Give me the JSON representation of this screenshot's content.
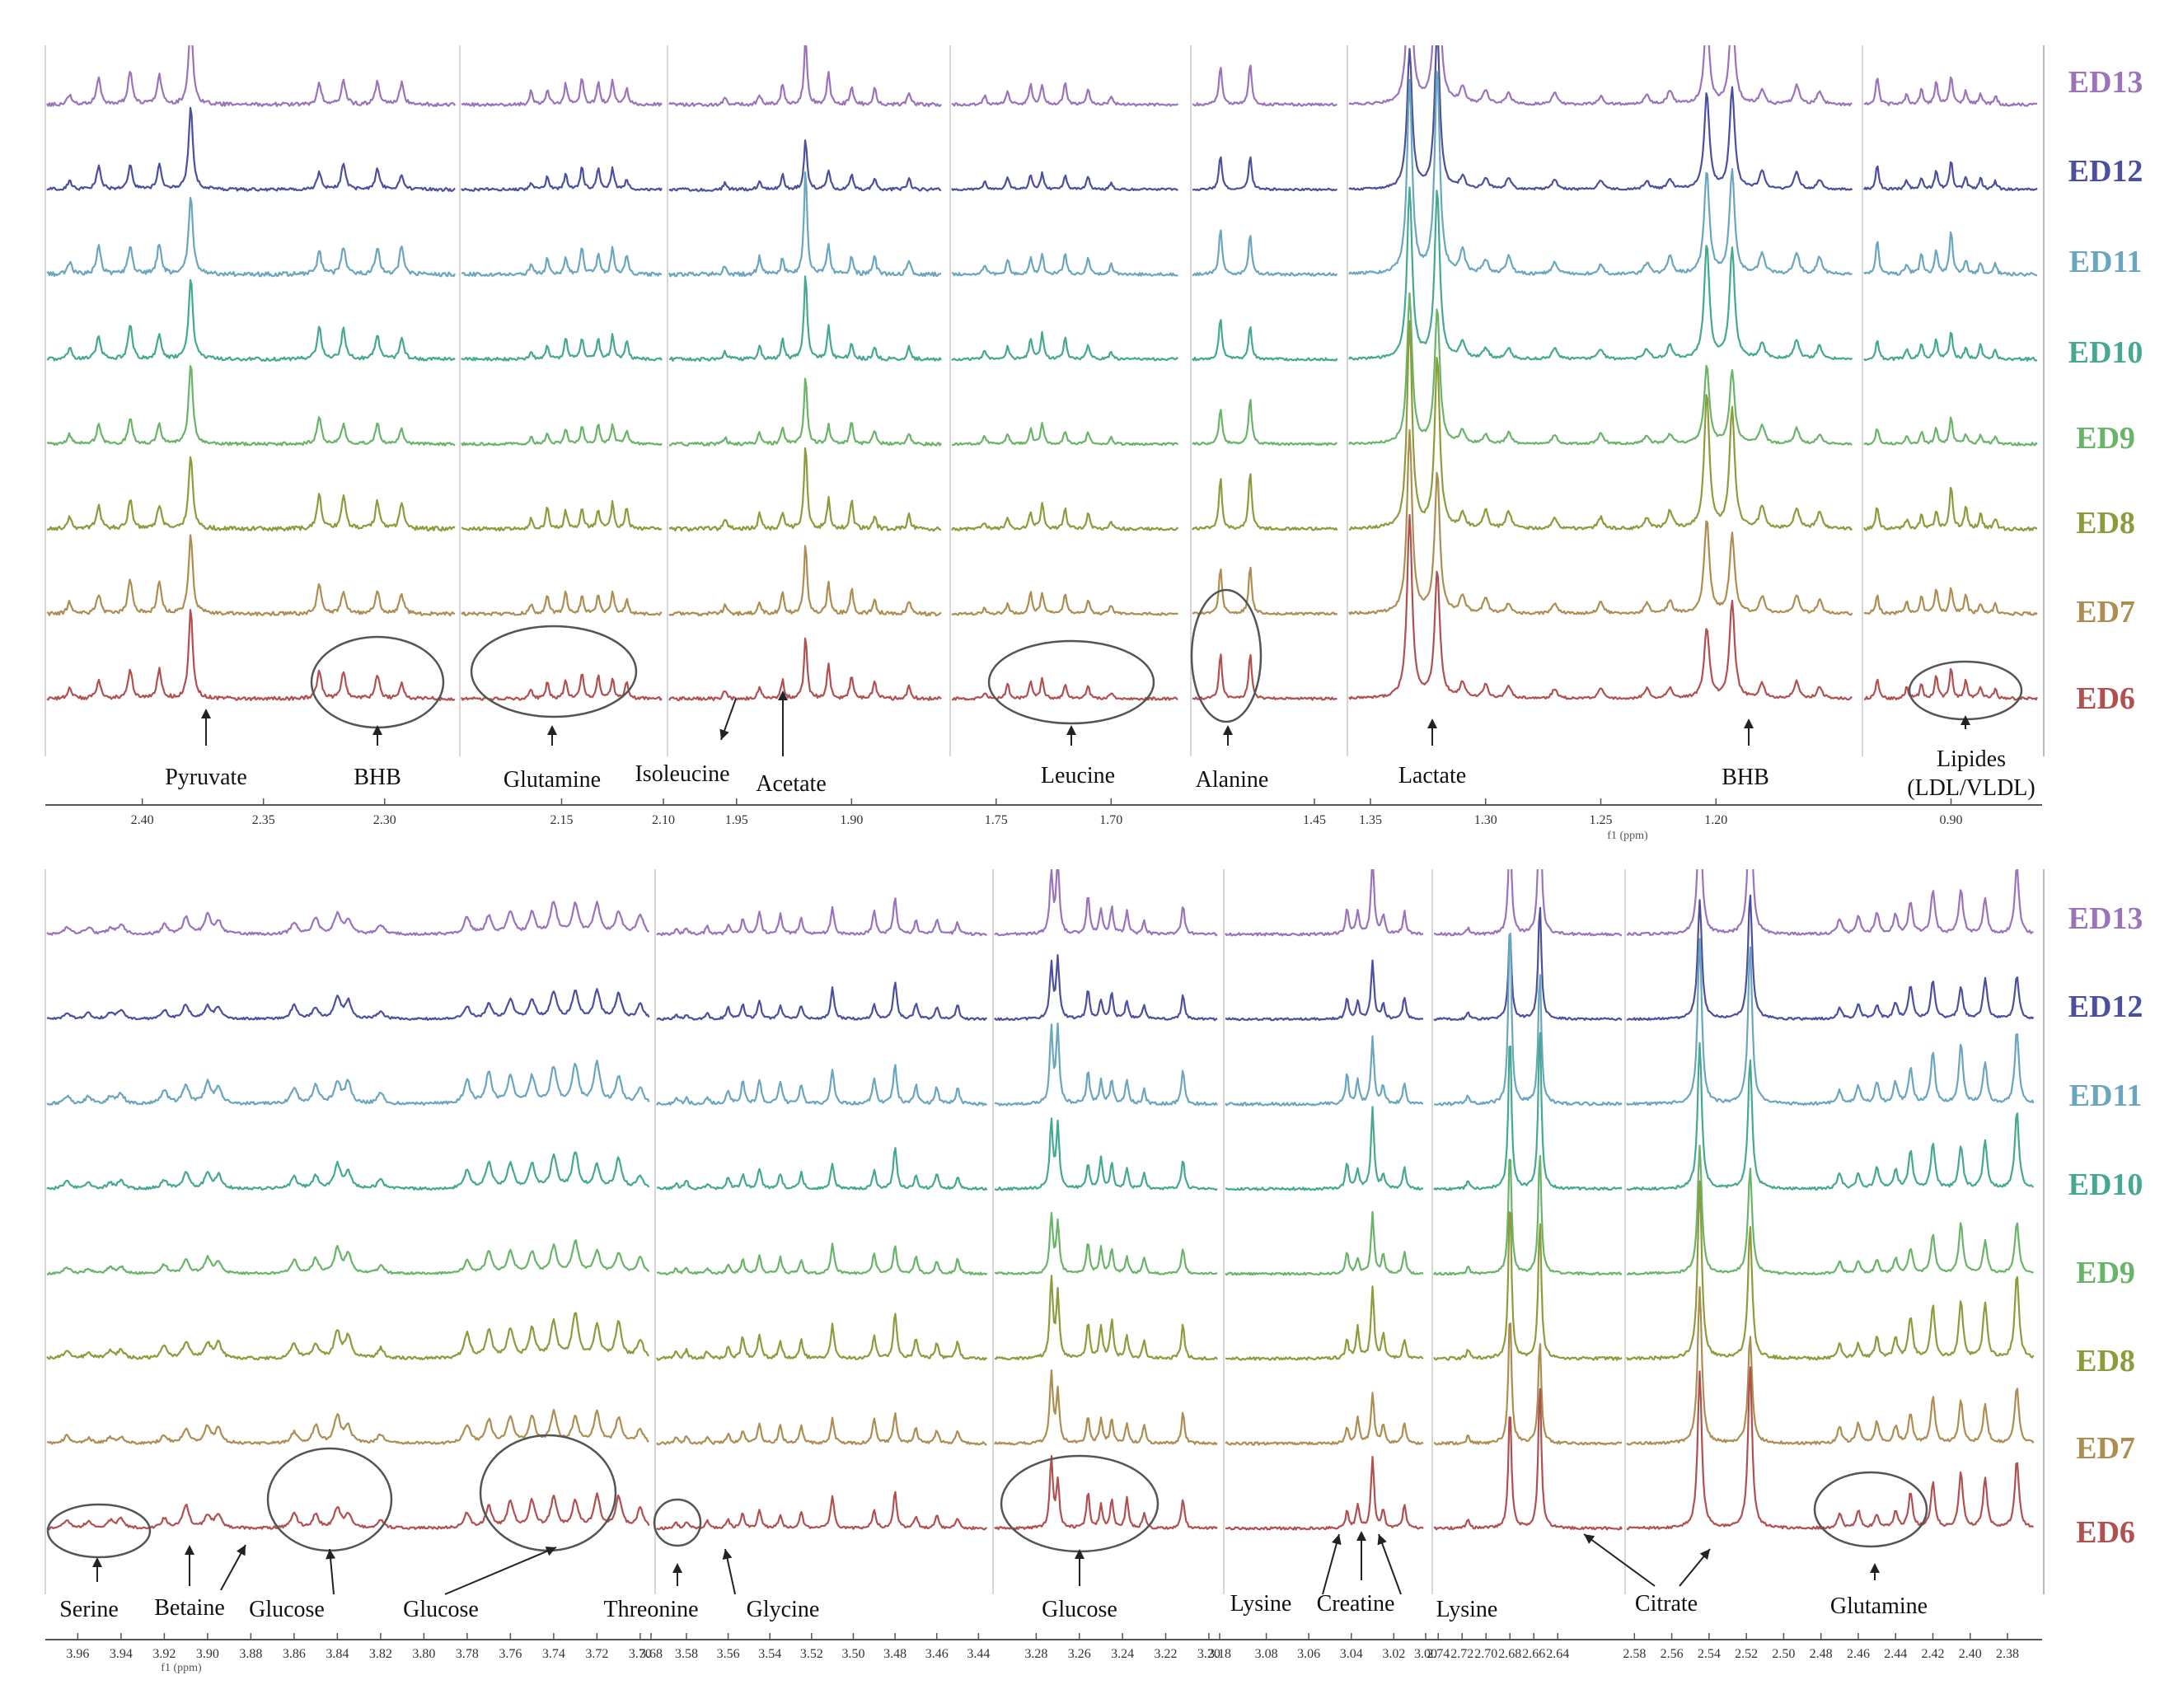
{
  "chart_data": [
    {
      "type": "line",
      "title": "",
      "xlabel": "f1 (ppm)",
      "ylabel": "",
      "grid": false,
      "series_labels": [
        "ED13",
        "ED12",
        "ED11",
        "ED10",
        "ED9",
        "ED8",
        "ED7",
        "ED6"
      ],
      "series_colors": [
        "#9b73bb",
        "#4b4f9e",
        "#6aa6bd",
        "#45a890",
        "#69b468",
        "#8c9c3c",
        "#ad8e52",
        "#b05050"
      ],
      "panels": [
        {
          "name": "p1",
          "ppm": [
            2.44,
            2.27
          ],
          "ticks": [
            2.4,
            2.35,
            2.3
          ],
          "peaks": [
            {
              "ppm": 2.43,
              "h": 0.18
            },
            {
              "ppm": 2.418,
              "h": 0.45
            },
            {
              "ppm": 2.405,
              "h": 0.55
            },
            {
              "ppm": 2.393,
              "h": 0.5
            },
            {
              "ppm": 2.38,
              "h": 1.6
            },
            {
              "ppm": 2.327,
              "h": 0.5
            },
            {
              "ppm": 2.317,
              "h": 0.48
            },
            {
              "ppm": 2.303,
              "h": 0.4
            },
            {
              "ppm": 2.293,
              "h": 0.4
            }
          ],
          "noise": 0.07
        },
        {
          "name": "p2",
          "ppm": [
            2.2,
            2.1
          ],
          "ticks": [
            2.15,
            2.1
          ],
          "peaks": [
            {
              "ppm": 2.165,
              "h": 0.2
            },
            {
              "ppm": 2.157,
              "h": 0.3
            },
            {
              "ppm": 2.148,
              "h": 0.35
            },
            {
              "ppm": 2.14,
              "h": 0.42
            },
            {
              "ppm": 2.132,
              "h": 0.38
            },
            {
              "ppm": 2.125,
              "h": 0.45
            },
            {
              "ppm": 2.118,
              "h": 0.3
            }
          ],
          "noise": 0.06
        },
        {
          "name": "p3",
          "ppm": [
            1.98,
            1.86
          ],
          "ticks": [
            1.95,
            1.9
          ],
          "peaks": [
            {
              "ppm": 1.955,
              "h": 0.15
            },
            {
              "ppm": 1.94,
              "h": 0.25
            },
            {
              "ppm": 1.93,
              "h": 0.35
            },
            {
              "ppm": 1.92,
              "h": 1.5
            },
            {
              "ppm": 1.91,
              "h": 0.55
            },
            {
              "ppm": 1.9,
              "h": 0.4
            },
            {
              "ppm": 1.89,
              "h": 0.3
            },
            {
              "ppm": 1.875,
              "h": 0.2
            }
          ],
          "noise": 0.07
        },
        {
          "name": "p4",
          "ppm": [
            1.77,
            1.67
          ],
          "ticks": [
            1.75,
            1.7
          ],
          "peaks": [
            {
              "ppm": 1.755,
              "h": 0.15
            },
            {
              "ppm": 1.745,
              "h": 0.25
            },
            {
              "ppm": 1.735,
              "h": 0.35
            },
            {
              "ppm": 1.73,
              "h": 0.42
            },
            {
              "ppm": 1.72,
              "h": 0.35
            },
            {
              "ppm": 1.71,
              "h": 0.28
            },
            {
              "ppm": 1.7,
              "h": 0.15
            }
          ],
          "noise": 0.05
        },
        {
          "name": "p5",
          "ppm": [
            1.5,
            1.44
          ],
          "ticks": [
            1.45
          ],
          "peaks": [
            {
              "ppm": 1.488,
              "h": 0.9
            },
            {
              "ppm": 1.476,
              "h": 0.85
            }
          ],
          "noise": 0.05
        },
        {
          "name": "p6",
          "ppm": [
            1.36,
            1.14
          ],
          "ticks": [
            1.35,
            1.3,
            1.25,
            1.2
          ],
          "peaks": [
            {
              "ppm": 1.333,
              "h": 3.0
            },
            {
              "ppm": 1.321,
              "h": 3.0
            },
            {
              "ppm": 1.31,
              "h": 0.3
            },
            {
              "ppm": 1.3,
              "h": 0.25
            },
            {
              "ppm": 1.29,
              "h": 0.25
            },
            {
              "ppm": 1.27,
              "h": 0.2
            },
            {
              "ppm": 1.25,
              "h": 0.2
            },
            {
              "ppm": 1.23,
              "h": 0.22
            },
            {
              "ppm": 1.22,
              "h": 0.25
            },
            {
              "ppm": 1.204,
              "h": 1.8
            },
            {
              "ppm": 1.193,
              "h": 1.8
            },
            {
              "ppm": 1.18,
              "h": 0.35
            },
            {
              "ppm": 1.165,
              "h": 0.3
            },
            {
              "ppm": 1.155,
              "h": 0.25
            }
          ],
          "noise": 0.05
        },
        {
          "name": "p7",
          "ppm": [
            0.96,
            0.84
          ],
          "ticks": [
            0.9
          ],
          "peaks": [
            {
              "ppm": 0.95,
              "h": 0.45
            },
            {
              "ppm": 0.93,
              "h": 0.2
            },
            {
              "ppm": 0.92,
              "h": 0.3
            },
            {
              "ppm": 0.91,
              "h": 0.4
            },
            {
              "ppm": 0.9,
              "h": 0.6
            },
            {
              "ppm": 0.89,
              "h": 0.3
            },
            {
              "ppm": 0.88,
              "h": 0.25
            },
            {
              "ppm": 0.87,
              "h": 0.2
            }
          ],
          "noise": 0.06
        }
      ],
      "tick_labels": [
        "2.40",
        "2.35",
        "2.30",
        "2.15",
        "2.10",
        "1.95",
        "1.90",
        "1.75",
        "1.70",
        "1.45",
        "1.35",
        "1.30",
        "1.25",
        "1.20",
        "0.90"
      ],
      "annotations": [
        "Pyruvate",
        "BHB",
        "Glutamine",
        "Isoleucine",
        "Acetate",
        "Leucine",
        "Alanine",
        "Lactate",
        "BHB",
        "Lipides",
        "(LDL/VLDL)"
      ],
      "unit_label": "f1 (ppm)"
    },
    {
      "type": "line",
      "title": "",
      "xlabel": "f1 (ppm)",
      "ylabel": "",
      "grid": false,
      "series_labels": [
        "ED13",
        "ED12",
        "ED11",
        "ED10",
        "ED9",
        "ED8",
        "ED7",
        "ED6"
      ],
      "series_colors": [
        "#9b73bb",
        "#4b4f9e",
        "#6aa6bd",
        "#45a890",
        "#69b468",
        "#8c9c3c",
        "#ad8e52",
        "#b05050"
      ],
      "panels": [
        {
          "name": "q1",
          "ppm": [
            3.975,
            3.695
          ],
          "ticks": [
            3.96,
            3.94,
            3.92,
            3.9,
            3.88,
            3.86,
            3.84,
            3.82,
            3.8,
            3.78,
            3.76,
            3.74,
            3.72,
            3.7
          ],
          "peaks": [
            {
              "ppm": 3.965,
              "h": 0.12
            },
            {
              "ppm": 3.955,
              "h": 0.12
            },
            {
              "ppm": 3.945,
              "h": 0.12
            },
            {
              "ppm": 3.94,
              "h": 0.15
            },
            {
              "ppm": 3.92,
              "h": 0.2
            },
            {
              "ppm": 3.91,
              "h": 0.35
            },
            {
              "ppm": 3.9,
              "h": 0.3
            },
            {
              "ppm": 3.895,
              "h": 0.3
            },
            {
              "ppm": 3.86,
              "h": 0.25
            },
            {
              "ppm": 3.85,
              "h": 0.3
            },
            {
              "ppm": 3.84,
              "h": 0.45
            },
            {
              "ppm": 3.835,
              "h": 0.35
            },
            {
              "ppm": 3.82,
              "h": 0.2
            },
            {
              "ppm": 3.78,
              "h": 0.35
            },
            {
              "ppm": 3.77,
              "h": 0.4
            },
            {
              "ppm": 3.76,
              "h": 0.45
            },
            {
              "ppm": 3.75,
              "h": 0.5
            },
            {
              "ppm": 3.74,
              "h": 0.55
            },
            {
              "ppm": 3.73,
              "h": 0.6
            },
            {
              "ppm": 3.72,
              "h": 0.55
            },
            {
              "ppm": 3.71,
              "h": 0.5
            },
            {
              "ppm": 3.7,
              "h": 0.3
            }
          ],
          "noise": 0.05
        },
        {
          "name": "q2",
          "ppm": [
            3.595,
            3.435
          ],
          "ticks": [
            3.58,
            3.56,
            3.54,
            3.52,
            3.5,
            3.48,
            3.46,
            3.44
          ],
          "peaks": [
            {
              "ppm": 3.585,
              "h": 0.12
            },
            {
              "ppm": 3.58,
              "h": 0.12
            },
            {
              "ppm": 3.57,
              "h": 0.12
            },
            {
              "ppm": 3.56,
              "h": 0.2
            },
            {
              "ppm": 3.553,
              "h": 0.3
            },
            {
              "ppm": 3.545,
              "h": 0.35
            },
            {
              "ppm": 3.535,
              "h": 0.3
            },
            {
              "ppm": 3.525,
              "h": 0.35
            },
            {
              "ppm": 3.51,
              "h": 0.55
            },
            {
              "ppm": 3.49,
              "h": 0.4
            },
            {
              "ppm": 3.48,
              "h": 0.7
            },
            {
              "ppm": 3.47,
              "h": 0.3
            },
            {
              "ppm": 3.46,
              "h": 0.25
            },
            {
              "ppm": 3.45,
              "h": 0.25
            }
          ],
          "noise": 0.05
        },
        {
          "name": "q3",
          "ppm": [
            3.3,
            3.195
          ],
          "ticks": [
            3.28,
            3.26,
            3.24,
            3.22,
            3.2
          ],
          "peaks": [
            {
              "ppm": 3.273,
              "h": 1.2
            },
            {
              "ppm": 3.27,
              "h": 1.1
            },
            {
              "ppm": 3.256,
              "h": 0.6
            },
            {
              "ppm": 3.25,
              "h": 0.5
            },
            {
              "ppm": 3.245,
              "h": 0.5
            },
            {
              "ppm": 3.238,
              "h": 0.45
            },
            {
              "ppm": 3.23,
              "h": 0.3
            },
            {
              "ppm": 3.212,
              "h": 0.6
            }
          ],
          "noise": 0.05
        },
        {
          "name": "q4",
          "ppm": [
            3.1,
            3.005
          ],
          "ticks": [
            3.08,
            3.06,
            3.04,
            3.02
          ],
          "peaks": [
            {
              "ppm": 3.042,
              "h": 0.4
            },
            {
              "ppm": 3.037,
              "h": 0.4
            },
            {
              "ppm": 3.03,
              "h": 1.2
            },
            {
              "ppm": 3.025,
              "h": 0.35
            },
            {
              "ppm": 3.015,
              "h": 0.4
            }
          ],
          "noise": 0.05
        },
        {
          "name": "q5",
          "ppm": [
            2.745,
            2.585
          ],
          "ticks": [
            2.72,
            2.7,
            2.68,
            2.66
          ],
          "peaks": [
            {
              "ppm": 2.715,
              "h": 0.15
            },
            {
              "ppm": 2.68,
              "h": 2.5
            },
            {
              "ppm": 2.655,
              "h": 2.5
            }
          ],
          "noise": 0.05
        },
        {
          "name": "q6",
          "ppm": [
            2.585,
            2.365
          ],
          "ticks": [
            2.56,
            2.54,
            2.52,
            2.5,
            2.48,
            2.46,
            2.44,
            2.42,
            2.4,
            2.38
          ],
          "peaks": [
            {
              "ppm": 2.545,
              "h": 2.5
            },
            {
              "ppm": 2.518,
              "h": 2.5
            },
            {
              "ppm": 2.47,
              "h": 0.25
            },
            {
              "ppm": 2.46,
              "h": 0.3
            },
            {
              "ppm": 2.45,
              "h": 0.35
            },
            {
              "ppm": 2.44,
              "h": 0.3
            },
            {
              "ppm": 2.432,
              "h": 0.6
            },
            {
              "ppm": 2.42,
              "h": 0.8
            },
            {
              "ppm": 2.405,
              "h": 0.9
            },
            {
              "ppm": 2.392,
              "h": 0.8
            },
            {
              "ppm": 2.375,
              "h": 1.2
            }
          ],
          "noise": 0.05
        }
      ],
      "tick_labels": [
        "3.96",
        "3.94",
        "3.92",
        "3.90",
        "3.88",
        "3.86",
        "3.84",
        "3.82",
        "3.80",
        "3.78",
        "3.76",
        "3.74",
        "3.72",
        "3.70",
        "3.68",
        "3.58",
        "3.56",
        "3.54",
        "3.52",
        "3.50",
        "3.48",
        "3.46",
        "3.44",
        "3.28",
        "3.26",
        "3.24",
        "3.22",
        "3.20",
        "3.18",
        "3.08",
        "3.06",
        "3.04",
        "3.02",
        "3.00",
        "2.74",
        "2.72",
        "2.70",
        "2.68",
        "2.66",
        "2.64",
        "2.58",
        "2.56",
        "2.54",
        "2.52",
        "2.50",
        "2.48",
        "2.46",
        "2.44",
        "2.42",
        "2.40",
        "2.38"
      ],
      "annotations": [
        "Serine",
        "Betaine",
        "Glucose",
        "Glucose",
        "Threonine",
        "Glycine",
        "Glucose",
        "Lysine",
        "Creatine",
        "Lysine",
        "Citrate",
        "Glutamine"
      ],
      "unit_label": "f1 (ppm)"
    }
  ]
}
